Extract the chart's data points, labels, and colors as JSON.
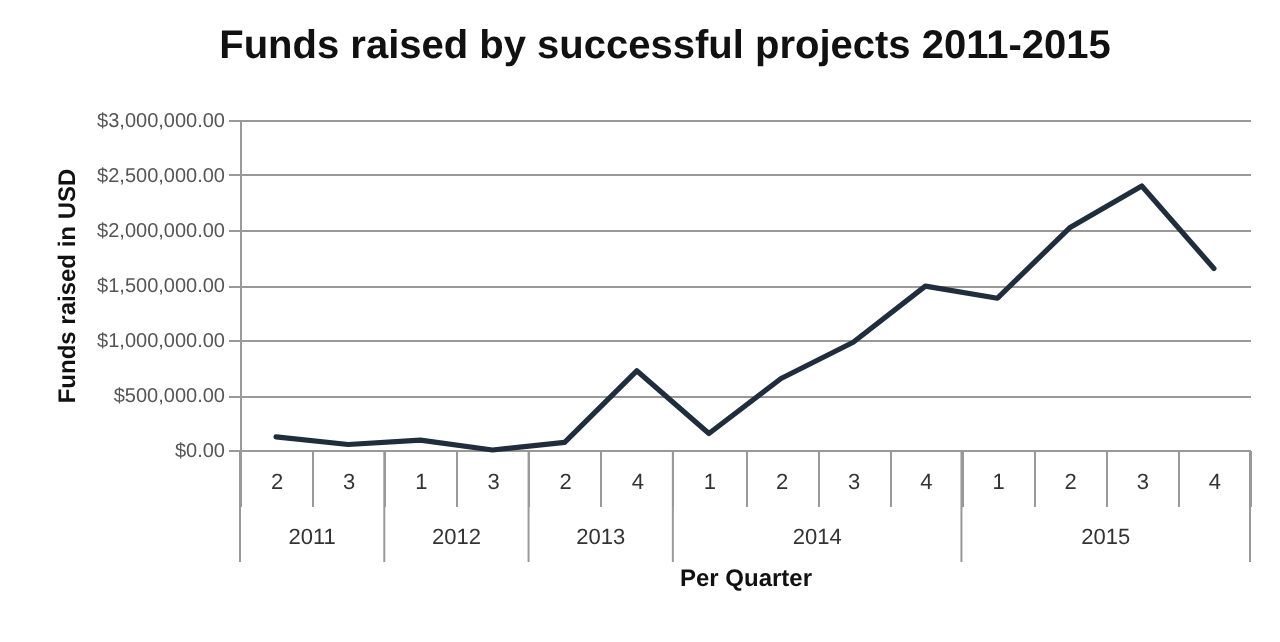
{
  "chart_data": {
    "type": "line",
    "title": "Funds raised by successful projects 2011-2015",
    "xlabel": "Per Quarter",
    "ylabel": "Funds raised in USD",
    "categories": [
      "2",
      "3",
      "1",
      "3",
      "2",
      "4",
      "1",
      "2",
      "3",
      "4",
      "1",
      "2",
      "3",
      "4"
    ],
    "annotations": [
      "2011",
      "2012",
      "2013",
      "2014",
      "2015"
    ],
    "series": [
      {
        "color": "#1f2d3d",
        "values": [
          120000,
          50000,
          90000,
          0,
          70000,
          720000,
          150000,
          650000,
          980000,
          1490000,
          1380000,
          2020000,
          2400000,
          1650000
        ]
      }
    ],
    "ylim": [
      0,
      3000000
    ],
    "yticks": [
      {
        "value": 0,
        "label": "$0.00"
      },
      {
        "value": 500000,
        "label": "$500,000.00"
      },
      {
        "value": 1000000,
        "label": "$1,000,000.00"
      },
      {
        "value": 1500000,
        "label": "$1,500,000.00"
      },
      {
        "value": 2000000,
        "label": "$2,000,000.00"
      },
      {
        "value": 2500000,
        "label": "$2,500,000.00"
      },
      {
        "value": 3000000,
        "label": "$3,000,000.00"
      }
    ],
    "grid": "y",
    "marker": "none",
    "line_style": "solid"
  }
}
